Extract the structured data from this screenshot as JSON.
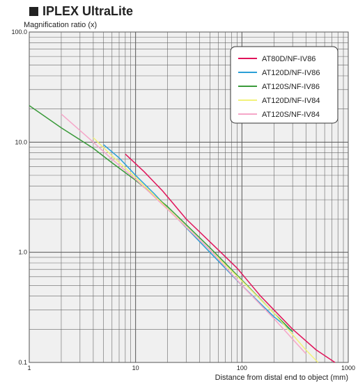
{
  "chart_data": {
    "type": "line",
    "title": "IPLEX UltraLite",
    "ylabel": "Magnification ratio (x)",
    "xlabel": "Distance from distal end to object (mm)",
    "x_scale": "log",
    "y_scale": "log",
    "xlim": [
      1,
      1000
    ],
    "ylim": [
      0.1,
      100
    ],
    "x_ticks": [
      {
        "value": 1,
        "label": "1"
      },
      {
        "value": 10,
        "label": "10"
      },
      {
        "value": 100,
        "label": "100"
      },
      {
        "value": 1000,
        "label": "1000"
      }
    ],
    "y_ticks": [
      {
        "value": 0.1,
        "label": "0.1"
      },
      {
        "value": 1,
        "label": "1.0"
      },
      {
        "value": 10,
        "label": "10.0"
      },
      {
        "value": 100,
        "label": "100.0"
      }
    ],
    "grid": true,
    "legend_position": "top-right",
    "series": [
      {
        "name": "AT80D/NF-IV86",
        "color": "#e0145a",
        "points": [
          [
            8,
            7.8
          ],
          [
            12,
            5.4
          ],
          [
            18,
            3.6
          ],
          [
            30,
            2.0
          ],
          [
            60,
            1.05
          ],
          [
            90,
            0.72
          ],
          [
            150,
            0.4
          ],
          [
            300,
            0.2
          ],
          [
            500,
            0.13
          ],
          [
            750,
            0.1
          ]
        ]
      },
      {
        "name": "AT120D/NF-IV86",
        "color": "#2a9fd6",
        "points": [
          [
            5,
            9.5
          ],
          [
            7,
            7.2
          ],
          [
            10,
            5.0
          ],
          [
            15,
            3.4
          ],
          [
            25,
            2.0
          ],
          [
            50,
            1.0
          ],
          [
            100,
            0.5
          ],
          [
            200,
            0.26
          ],
          [
            300,
            0.19
          ]
        ]
      },
      {
        "name": "AT120S/NF-IV86",
        "color": "#3a9a3a",
        "points": [
          [
            1,
            21.5
          ],
          [
            2,
            13.5
          ],
          [
            4,
            8.8
          ],
          [
            6,
            6.5
          ],
          [
            10,
            4.5
          ],
          [
            20,
            2.6
          ],
          [
            50,
            1.1
          ],
          [
            100,
            0.56
          ],
          [
            200,
            0.28
          ],
          [
            300,
            0.19
          ]
        ]
      },
      {
        "name": "AT120D/NF-IV84",
        "color": "#f2f27a",
        "points": [
          [
            4,
            11.0
          ],
          [
            6,
            7.5
          ],
          [
            10,
            4.8
          ],
          [
            20,
            2.5
          ],
          [
            50,
            1.05
          ],
          [
            100,
            0.55
          ],
          [
            200,
            0.28
          ],
          [
            400,
            0.13
          ],
          [
            520,
            0.1
          ]
        ]
      },
      {
        "name": "AT120S/NF-IV84",
        "color": "#f5a6c8",
        "points": [
          [
            2,
            18.0
          ],
          [
            4,
            10.0
          ],
          [
            6,
            7.0
          ],
          [
            10,
            4.6
          ],
          [
            20,
            2.45
          ],
          [
            50,
            1.05
          ],
          [
            100,
            0.5
          ],
          [
            200,
            0.25
          ],
          [
            400,
            0.12
          ]
        ]
      }
    ]
  }
}
